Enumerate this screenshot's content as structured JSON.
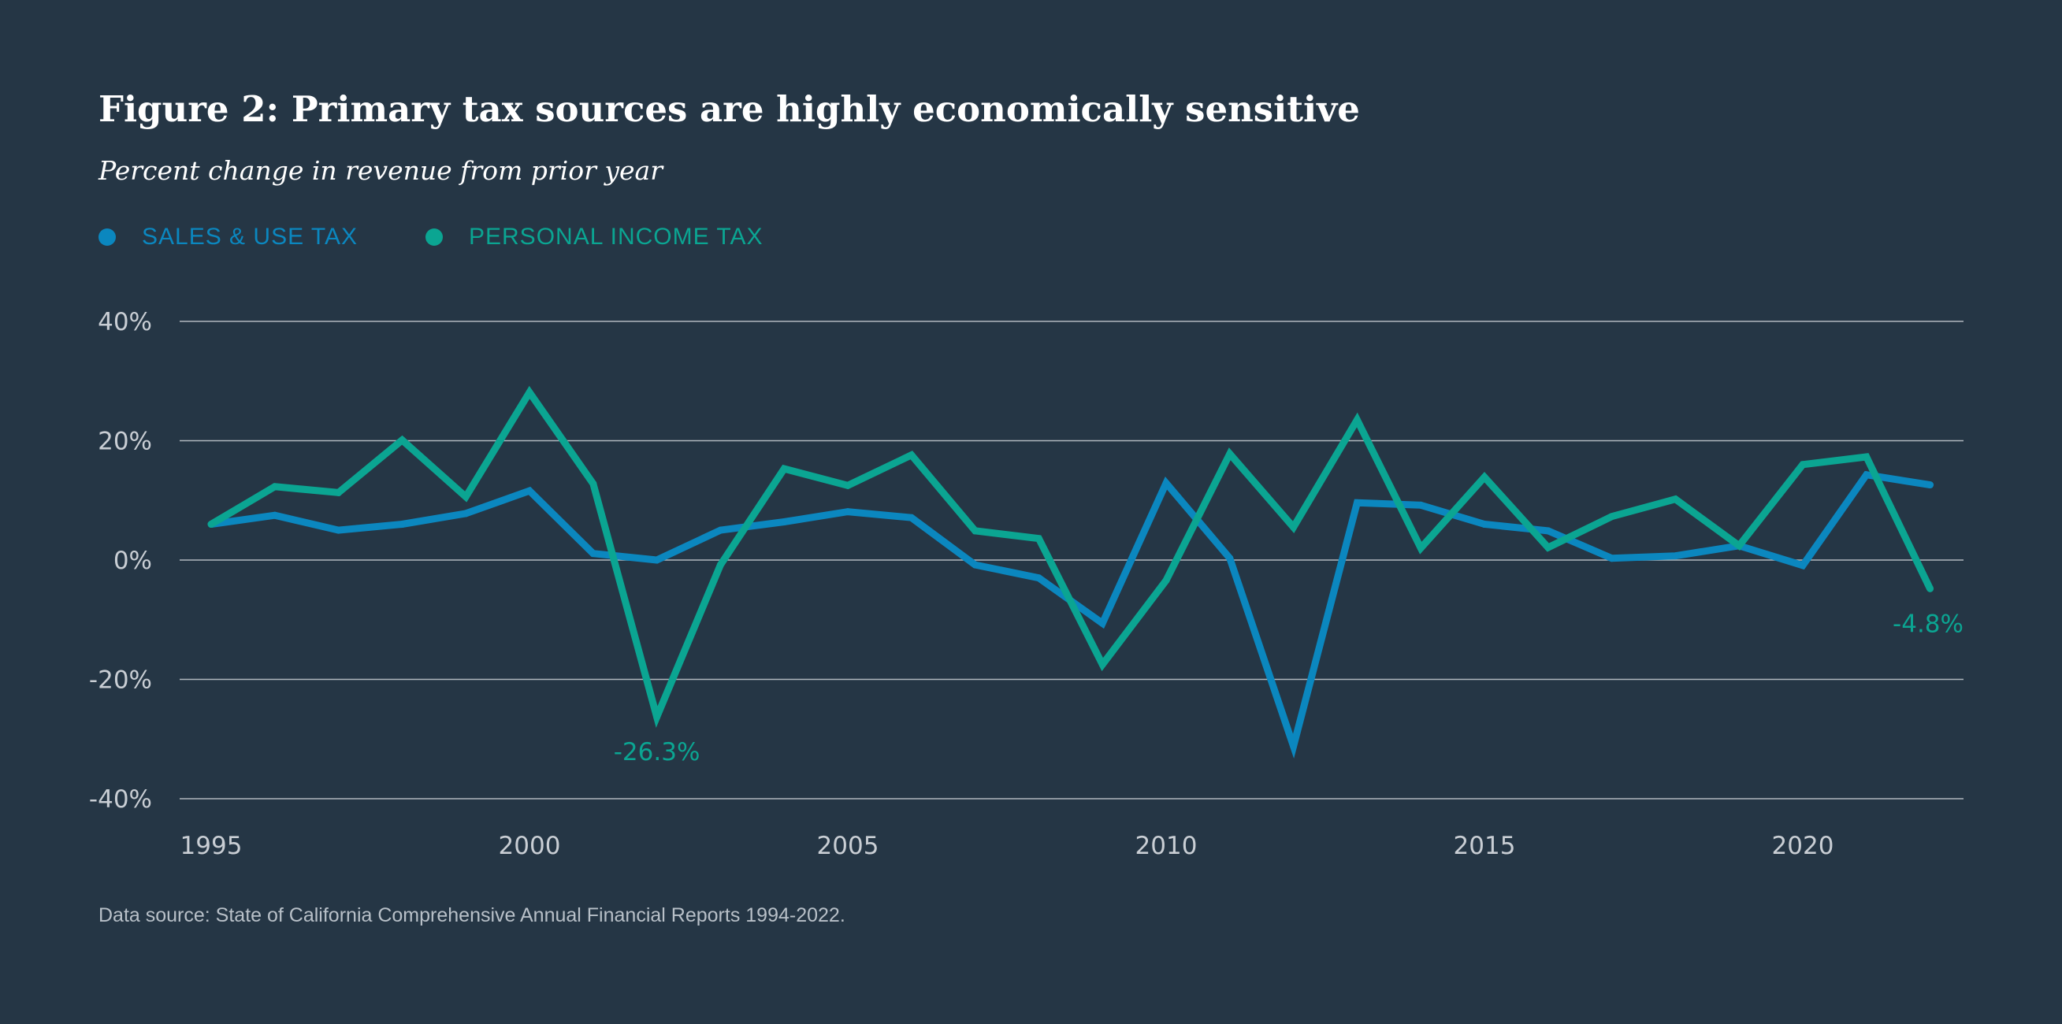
{
  "colors": {
    "background": "#253645",
    "sales_tax": "#0B87BF",
    "income_tax": "#0BA592",
    "grid": "#c9ced4",
    "axis_text": "#c9ced4"
  },
  "legend": [
    {
      "label": "SALES & USE TAX",
      "color": "#0B87BF"
    },
    {
      "label": "PERSONAL INCOME TAX",
      "color": "#0BA592"
    }
  ],
  "source": "Data source: State of California Comprehensive Annual Financial Reports 1994-2022.",
  "chart_data": {
    "type": "line",
    "title": "Figure 2: Primary tax sources are highly economically sensitive",
    "subtitle": "Percent change in revenue from prior year",
    "xlabel": "",
    "ylabel": "",
    "x": [
      1995,
      1996,
      1997,
      1998,
      1999,
      2000,
      2001,
      2002,
      2003,
      2004,
      2005,
      2006,
      2007,
      2008,
      2009,
      2010,
      2011,
      2012,
      2013,
      2014,
      2015,
      2016,
      2017,
      2018,
      2019,
      2020,
      2021,
      2022
    ],
    "xlim": [
      1995,
      2023
    ],
    "xticks": [
      1995,
      2000,
      2005,
      2010,
      2015,
      2020
    ],
    "ylim": [
      -40,
      40
    ],
    "yticks": [
      40,
      20,
      0,
      -20,
      -40
    ],
    "ytick_labels": [
      "40%",
      "20%",
      "0%",
      "-20%",
      "-40%"
    ],
    "grid": true,
    "legend_position": "top-left",
    "series": [
      {
        "name": "SALES & USE TAX",
        "color": "#0B87BF",
        "values": [
          6.0,
          7.5,
          5.0,
          6.0,
          7.8,
          11.6,
          1.1,
          0.0,
          5.0,
          6.4,
          8.1,
          7.1,
          -0.8,
          -3.0,
          -10.6,
          12.9,
          0.3,
          -31.2,
          9.6,
          9.2,
          6.0,
          4.9,
          0.3,
          0.7,
          2.4,
          -0.9,
          14.3,
          12.6
        ]
      },
      {
        "name": "PERSONAL INCOME TAX",
        "color": "#0BA592",
        "values": [
          6.0,
          12.3,
          11.3,
          20.1,
          10.6,
          28.1,
          12.8,
          -26.3,
          -0.8,
          15.3,
          12.5,
          17.6,
          4.9,
          3.6,
          -17.5,
          -3.4,
          17.8,
          5.5,
          23.5,
          2.0,
          13.9,
          2.1,
          7.3,
          10.2,
          2.4,
          16.0,
          17.3,
          -4.8
        ]
      }
    ],
    "annotations": [
      {
        "text": "-26.3%",
        "series": "PERSONAL INCOME TAX",
        "x": 2002,
        "y": -26.3,
        "position": "below",
        "color": "#0BA592"
      },
      {
        "text": "-4.8%",
        "series": "PERSONAL INCOME TAX",
        "x": 2022,
        "y": -4.8,
        "position": "below",
        "color": "#0BA592"
      }
    ]
  }
}
